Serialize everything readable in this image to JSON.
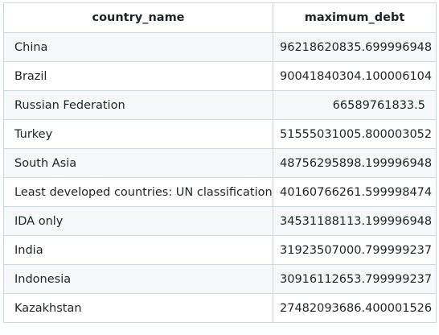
{
  "table": {
    "columns": [
      "country_name",
      "maximum_debt"
    ],
    "rows": [
      {
        "country_name": "China",
        "maximum_debt": "96218620835.699996948"
      },
      {
        "country_name": "Brazil",
        "maximum_debt": "90041840304.100006104"
      },
      {
        "country_name": "Russian Federation",
        "maximum_debt": "66589761833.5"
      },
      {
        "country_name": "Turkey",
        "maximum_debt": "51555031005.800003052"
      },
      {
        "country_name": "South Asia",
        "maximum_debt": "48756295898.199996948"
      },
      {
        "country_name": "Least developed countries: UN classification",
        "maximum_debt": "40160766261.599998474"
      },
      {
        "country_name": "IDA only",
        "maximum_debt": "34531188113.199996948"
      },
      {
        "country_name": "India",
        "maximum_debt": "31923507000.799999237"
      },
      {
        "country_name": "Indonesia",
        "maximum_debt": "30916112653.799999237"
      },
      {
        "country_name": "Kazakhstan",
        "maximum_debt": "27482093686.400001526"
      }
    ]
  }
}
